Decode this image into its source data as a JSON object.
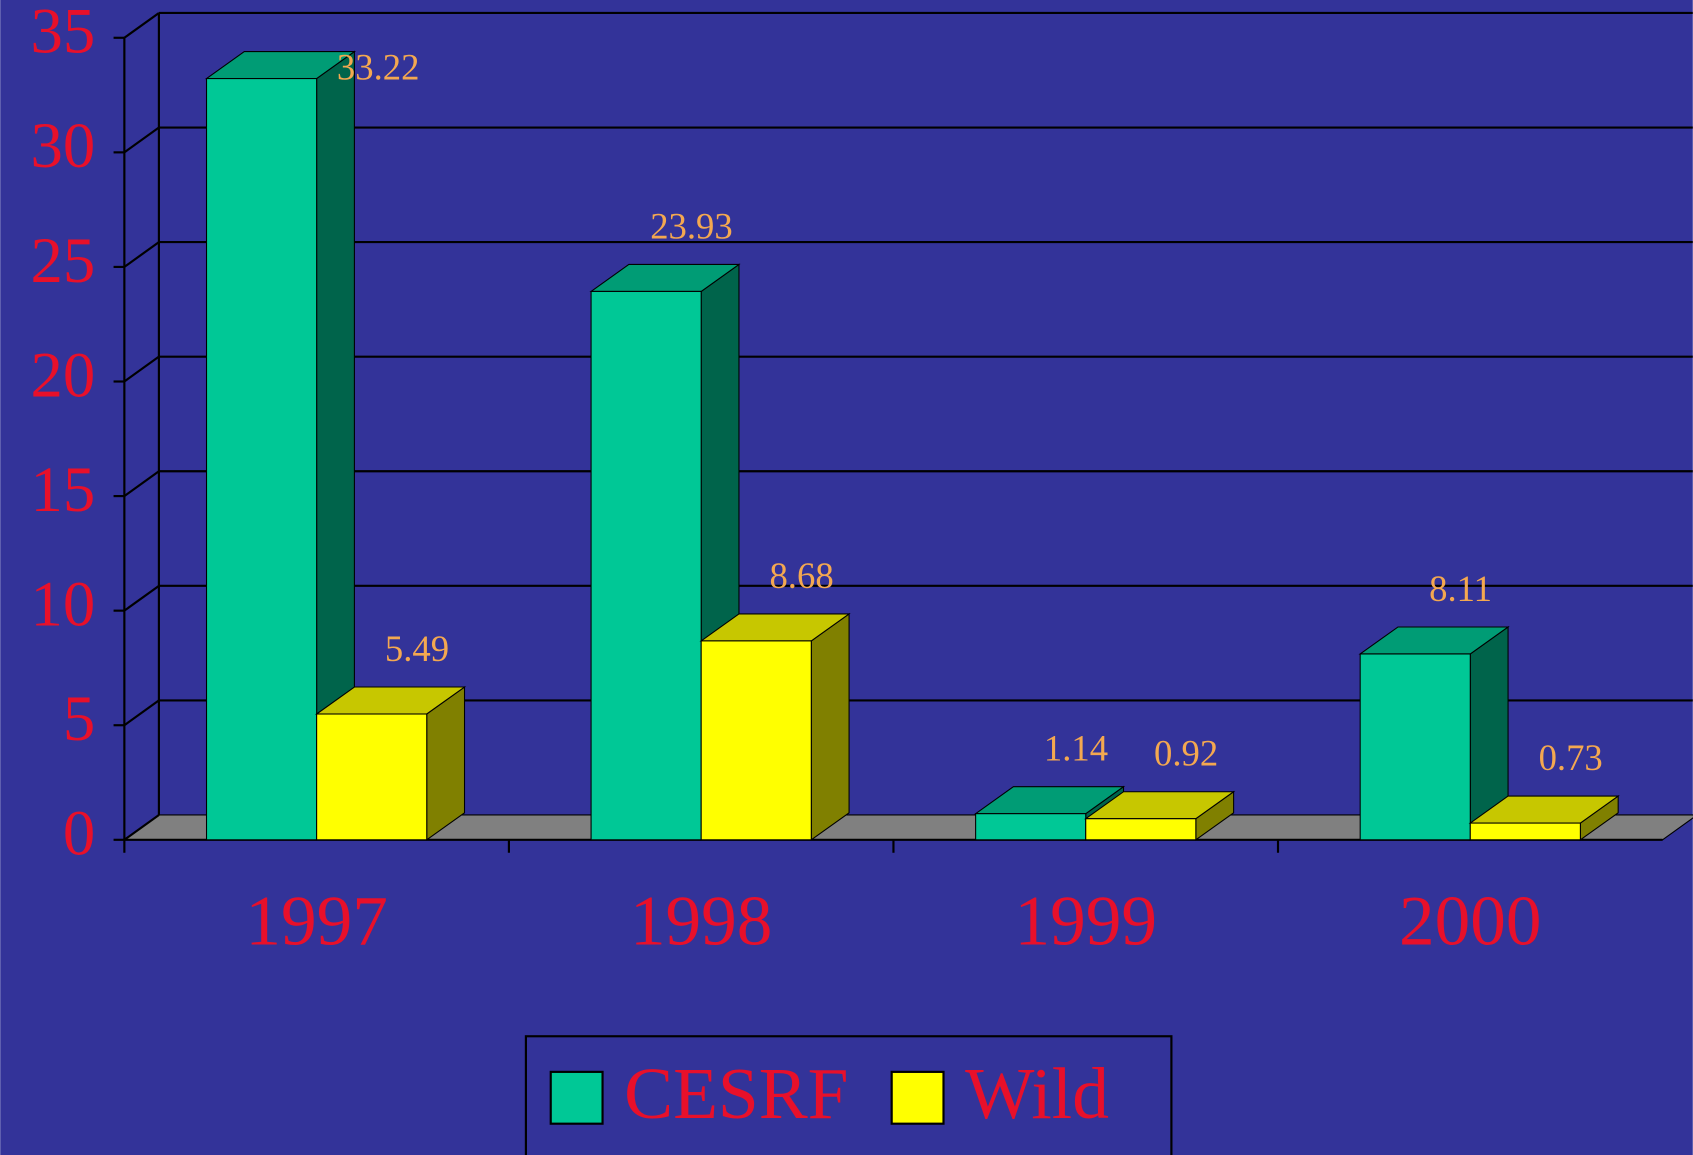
{
  "chart_data": {
    "type": "bar3d",
    "categories": [
      "1997",
      "1998",
      "1999",
      "2000"
    ],
    "series": [
      {
        "name": "CESRF",
        "color": "#00c896",
        "values": [
          33.22,
          23.93,
          1.14,
          8.11
        ]
      },
      {
        "name": "Wild",
        "color": "#ffff00",
        "values": [
          5.49,
          8.68,
          0.92,
          0.73
        ]
      }
    ],
    "ylim": [
      0,
      35
    ],
    "yticks": [
      0,
      5,
      10,
      15,
      20,
      25,
      30,
      35
    ],
    "grid": true,
    "legend": "bottom",
    "background": "#333399"
  }
}
